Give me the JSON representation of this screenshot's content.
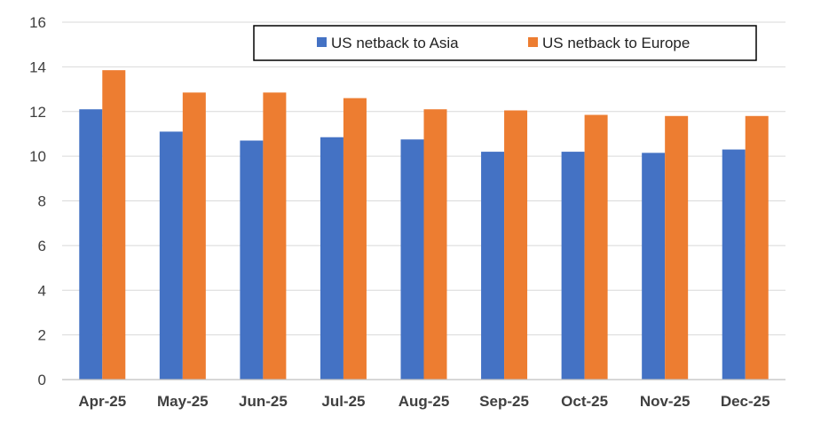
{
  "chart_data": {
    "type": "bar",
    "title": "",
    "xlabel": "",
    "ylabel": "",
    "ylim": [
      0,
      16
    ],
    "yticks": [
      0,
      2,
      4,
      6,
      8,
      10,
      12,
      14,
      16
    ],
    "grid": true,
    "legend_position": "top-right",
    "categories": [
      "Apr-25",
      "May-25",
      "Jun-25",
      "Jul-25",
      "Aug-25",
      "Sep-25",
      "Oct-25",
      "Nov-25",
      "Dec-25"
    ],
    "series": [
      {
        "name": "US netback to Asia",
        "color": "#4472C4",
        "values": [
          12.1,
          11.1,
          10.7,
          10.85,
          10.75,
          10.2,
          10.2,
          10.15,
          10.3
        ]
      },
      {
        "name": "US netback to Europe",
        "color": "#ED7D31",
        "values": [
          13.85,
          12.85,
          12.85,
          12.6,
          12.1,
          12.05,
          11.85,
          11.8,
          11.8
        ]
      }
    ]
  }
}
